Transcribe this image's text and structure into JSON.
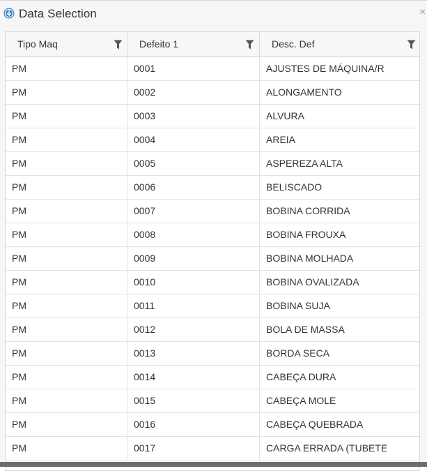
{
  "dialog": {
    "title": "Data Selection",
    "close_glyph": "×",
    "title_icon": "circle-arrow-down-icon",
    "accent_color": "#2d7fc1"
  },
  "grid": {
    "columns": [
      {
        "label": "Tipo Maq",
        "filter_icon": "filter-funnel-icon"
      },
      {
        "label": "Defeito 1",
        "filter_icon": "filter-funnel-icon"
      },
      {
        "label": "Desc. Def",
        "filter_icon": "filter-funnel-icon"
      }
    ],
    "rows": [
      [
        "PM",
        "0001",
        "AJUSTES DE MÁQUINA/R"
      ],
      [
        "PM",
        "0002",
        "ALONGAMENTO"
      ],
      [
        "PM",
        "0003",
        "ALVURA"
      ],
      [
        "PM",
        "0004",
        "AREIA"
      ],
      [
        "PM",
        "0005",
        "ASPEREZA ALTA"
      ],
      [
        "PM",
        "0006",
        "BELISCADO"
      ],
      [
        "PM",
        "0007",
        "BOBINA CORRIDA"
      ],
      [
        "PM",
        "0008",
        "BOBINA FROUXA"
      ],
      [
        "PM",
        "0009",
        "BOBINA MOLHADA"
      ],
      [
        "PM",
        "0010",
        "BOBINA OVALIZADA"
      ],
      [
        "PM",
        "0011",
        "BOBINA SUJA"
      ],
      [
        "PM",
        "0012",
        "BOLA DE MASSA"
      ],
      [
        "PM",
        "0013",
        "BORDA SECA"
      ],
      [
        "PM",
        "0014",
        "CABEÇA DURA"
      ],
      [
        "PM",
        "0015",
        "CABEÇA MOLE"
      ],
      [
        "PM",
        "0016",
        "CABEÇA QUEBRADA"
      ],
      [
        "PM",
        "0017",
        "CARGA ERRADA (TUBETE"
      ]
    ]
  }
}
